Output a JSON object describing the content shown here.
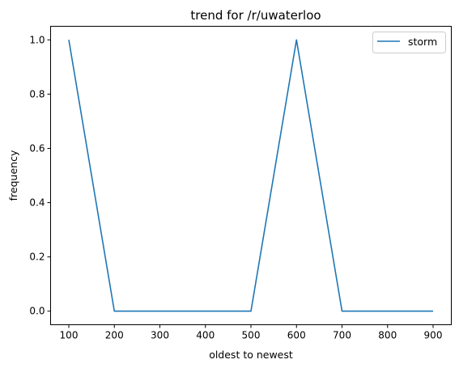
{
  "chart_data": {
    "type": "line",
    "title": "trend for /r/uwaterloo",
    "xlabel": "oldest to newest",
    "ylabel": "frequency",
    "x": [
      100,
      200,
      300,
      400,
      500,
      600,
      700,
      800,
      900
    ],
    "series": [
      {
        "name": "storm",
        "color": "#1f77b4",
        "values": [
          1,
          0,
          0,
          0,
          0,
          1,
          0,
          0,
          0
        ]
      }
    ],
    "xticks": [
      100,
      200,
      300,
      400,
      500,
      600,
      700,
      800,
      900
    ],
    "xtick_labels": [
      "100",
      "200",
      "300",
      "400",
      "500",
      "600",
      "700",
      "800",
      "900"
    ],
    "yticks": [
      0.0,
      0.2,
      0.4,
      0.6,
      0.8,
      1.0
    ],
    "ytick_labels": [
      "0.0",
      "0.2",
      "0.4",
      "0.6",
      "0.8",
      "1.0"
    ],
    "xlim": [
      60,
      940
    ],
    "ylim": [
      -0.05,
      1.05
    ],
    "grid": false,
    "legend_position": "upper right"
  }
}
